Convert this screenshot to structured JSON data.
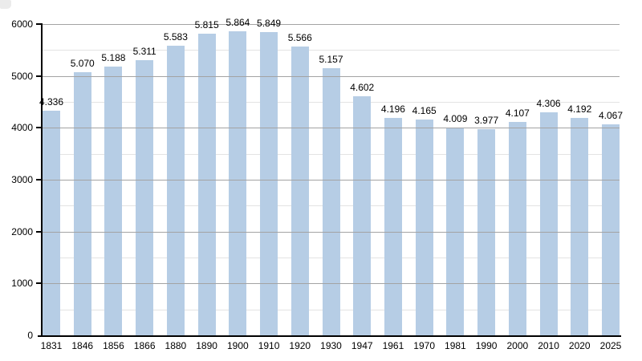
{
  "page": {
    "background": "#ffffff",
    "corner_artifact_color": "#ebebeb"
  },
  "chart_data": {
    "type": "bar",
    "title": "",
    "xlabel": "",
    "ylabel": "",
    "categories": [
      "1831",
      "1846",
      "1856",
      "1866",
      "1880",
      "1890",
      "1900",
      "1910",
      "1920",
      "1930",
      "1947",
      "1961",
      "1970",
      "1981",
      "1990",
      "2000",
      "2010",
      "2020",
      "2025"
    ],
    "values": [
      4336,
      5070,
      5188,
      5311,
      5583,
      5815,
      5864,
      5849,
      5566,
      5157,
      4602,
      4196,
      4165,
      4009,
      3977,
      4107,
      4306,
      4192,
      4067
    ],
    "value_labels": [
      "4.336",
      "5.070",
      "5.188",
      "5.311",
      "5.583",
      "5.815",
      "5.864",
      "5.849",
      "5.566",
      "5.157",
      "4.602",
      "4.196",
      "4.165",
      "4.009",
      "3.977",
      "4.107",
      "4.306",
      "4.192",
      "4.067"
    ],
    "ylim": [
      0,
      6000
    ],
    "yticks": [
      0,
      1000,
      2000,
      3000,
      4000,
      5000,
      6000
    ],
    "minor_grid_step": 500,
    "major_grid_step": 1000,
    "grid": "horizontal",
    "legend": null,
    "bar_color": "#b6cde5",
    "major_grid_color": "#a3a3a3",
    "minor_grid_color": "#e3e3e3",
    "axis_color": "#000000",
    "text_color": "#000000"
  }
}
